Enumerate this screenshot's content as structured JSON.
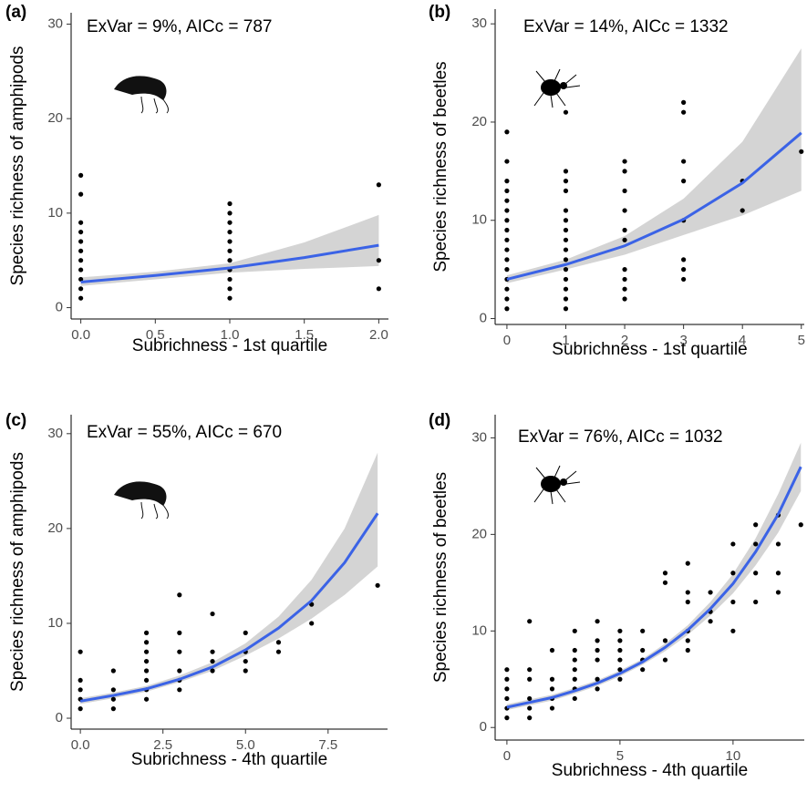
{
  "chart_data": [
    {
      "type": "scatter",
      "panel_label": "(a)",
      "annotation": "ExVar = 9%, AICc = 787",
      "x_label": "Subrichness - 1st quartile",
      "y_label": "Species richness of amphipods",
      "xlim": [
        -0.065,
        2.065
      ],
      "ylim": [
        -1.2,
        31.2
      ],
      "xticks": [
        {
          "value": 0,
          "label": "0.0"
        },
        0.5,
        {
          "value": 1,
          "label": "1.0"
        },
        1.5,
        {
          "value": 2,
          "label": "2.0"
        }
      ],
      "yticks": [
        0,
        10,
        20,
        30
      ],
      "points": {
        "color": "#000000",
        "x": [
          0,
          0,
          0,
          0,
          0,
          0,
          0,
          0,
          0,
          0,
          0,
          1,
          1,
          1,
          1,
          1,
          1,
          1,
          1,
          1,
          1,
          1,
          2,
          2,
          2
        ],
        "y": [
          1,
          2,
          3,
          4,
          5,
          6,
          7,
          8,
          9,
          12,
          14,
          1,
          2,
          3,
          4,
          5,
          6,
          7,
          8,
          9,
          10,
          11,
          2,
          5,
          13
        ]
      },
      "fit": {
        "color": "#3b63e6",
        "band_color": "#d4d4d4",
        "x": [
          0,
          0.5,
          1,
          1.5,
          2
        ],
        "values": [
          2.7,
          3.4,
          4.2,
          5.3,
          6.6
        ],
        "lower": [
          2.3,
          3.0,
          3.7,
          4.1,
          4.4
        ],
        "upper": [
          3.2,
          3.8,
          4.7,
          6.9,
          9.8
        ]
      }
    },
    {
      "type": "scatter",
      "panel_label": "(b)",
      "annotation": "ExVar = 14%, AICc = 1332",
      "x_label": "Subrichness - 1st quartile",
      "y_label": "Species richness of beetles",
      "xlim": [
        -0.2,
        5.05
      ],
      "ylim": [
        -0.6,
        31.5
      ],
      "xticks": [
        0,
        1,
        2,
        3,
        4,
        5
      ],
      "yticks": [
        0,
        10,
        20,
        30
      ],
      "points": {
        "color": "#000000",
        "x": [
          0,
          0,
          0,
          0,
          0,
          0,
          0,
          0,
          0,
          0,
          0,
          0,
          0,
          0,
          0,
          0,
          1,
          1,
          1,
          1,
          1,
          1,
          1,
          1,
          1,
          1,
          1,
          1,
          1,
          1,
          1,
          2,
          2,
          2,
          2,
          2,
          2,
          2,
          2,
          2,
          2,
          3,
          3,
          3,
          3,
          3,
          3,
          3,
          3,
          4,
          4,
          5
        ],
        "y": [
          1,
          2,
          3,
          4,
          5,
          6,
          7,
          8,
          9,
          10,
          11,
          12,
          13,
          14,
          16,
          19,
          1,
          2,
          3,
          4,
          5,
          6,
          7,
          8,
          9,
          10,
          11,
          13,
          14,
          15,
          21,
          2,
          3,
          4,
          5,
          8,
          9,
          11,
          13,
          15,
          16,
          4,
          5,
          6,
          10,
          14,
          16,
          21,
          22,
          11,
          14,
          17
        ]
      },
      "fit": {
        "color": "#3b63e6",
        "band_color": "#d4d4d4",
        "x": [
          0,
          1,
          2,
          3,
          4,
          5
        ],
        "values": [
          4,
          5.5,
          7.4,
          10.1,
          13.8,
          18.9
        ],
        "lower": [
          3.6,
          5.0,
          6.5,
          8.5,
          10.5,
          13
        ],
        "upper": [
          4.4,
          6.0,
          8.4,
          12.2,
          18,
          27.5
        ]
      }
    },
    {
      "type": "scatter",
      "panel_label": "(c)",
      "annotation": "ExVar = 55%, AICc = 670",
      "x_label": "Subrichness - 4th quartile",
      "y_label": "Species richness of amphipods",
      "xlim": [
        -0.28,
        9.3
      ],
      "ylim": [
        -1.15,
        32
      ],
      "xticks": [
        {
          "value": 0,
          "label": "0.0"
        },
        2.5,
        {
          "value": 5,
          "label": "5.0"
        },
        7.5
      ],
      "yticks": [
        0,
        10,
        20,
        30
      ],
      "points": {
        "color": "#000000",
        "x": [
          0,
          0,
          0,
          0,
          0,
          1,
          1,
          1,
          1,
          2,
          2,
          2,
          2,
          2,
          2,
          2,
          2,
          3,
          3,
          3,
          3,
          3,
          3,
          4,
          4,
          4,
          4,
          5,
          5,
          5,
          5,
          6,
          6,
          7,
          7,
          9
        ],
        "y": [
          1,
          2,
          3,
          4,
          7,
          1,
          2,
          3,
          5,
          2,
          3,
          4,
          5,
          6,
          7,
          8,
          9,
          3,
          4,
          5,
          7,
          9,
          13,
          5,
          6,
          7,
          11,
          5,
          6,
          7,
          9,
          7,
          8,
          10,
          12,
          14
        ]
      },
      "fit": {
        "color": "#3b63e6",
        "band_color": "#d4d4d4",
        "x": [
          0,
          1,
          2,
          3,
          4,
          5,
          6,
          7,
          8,
          9
        ],
        "values": [
          1.8,
          2.4,
          3.1,
          4.1,
          5.4,
          7.2,
          9.5,
          12.4,
          16.4,
          21.6
        ],
        "lower": [
          1.5,
          2.1,
          2.8,
          3.8,
          5.0,
          6.6,
          8.4,
          10.5,
          13,
          16
        ],
        "upper": [
          2.1,
          2.7,
          3.4,
          4.5,
          5.9,
          7.9,
          10.7,
          14.6,
          20,
          28
        ]
      }
    },
    {
      "type": "scatter",
      "panel_label": "(d)",
      "annotation": "ExVar = 76%, AICc = 1032",
      "x_label": "Subrichness - 4th quartile",
      "y_label": "Species richness of beetles",
      "xlim": [
        -0.52,
        13.15
      ],
      "ylim": [
        -1.3,
        32.4
      ],
      "xticks": [
        0,
        5,
        10
      ],
      "yticks": [
        0,
        10,
        20,
        30
      ],
      "points": {
        "color": "#000000",
        "x": [
          0,
          0,
          0,
          0,
          0,
          0,
          1,
          1,
          1,
          1,
          1,
          1,
          2,
          2,
          2,
          2,
          2,
          3,
          3,
          3,
          3,
          3,
          3,
          3,
          4,
          4,
          4,
          4,
          4,
          4,
          5,
          5,
          5,
          5,
          5,
          5,
          6,
          6,
          6,
          6,
          7,
          7,
          7,
          7,
          8,
          8,
          8,
          8,
          8,
          8,
          9,
          9,
          9,
          10,
          10,
          10,
          10,
          11,
          11,
          11,
          11,
          12,
          12,
          12,
          12,
          13
        ],
        "y": [
          1,
          2,
          3,
          4,
          5,
          6,
          1,
          2,
          3,
          5,
          6,
          11,
          2,
          3,
          4,
          5,
          8,
          3,
          4,
          5,
          6,
          7,
          8,
          10,
          4,
          5,
          7,
          8,
          9,
          11,
          5,
          6,
          7,
          8,
          9,
          10,
          6,
          7,
          8,
          10,
          7,
          9,
          15,
          16,
          8,
          9,
          10,
          13,
          14,
          17,
          11,
          12,
          14,
          10,
          13,
          16,
          19,
          13,
          16,
          19,
          21,
          14,
          16,
          19,
          22,
          21
        ]
      },
      "fit": {
        "color": "#3b63e6",
        "band_color": "#d4d4d4",
        "x": [
          0,
          1,
          2,
          3,
          4,
          5,
          6,
          7,
          8,
          9,
          10,
          11,
          12,
          13
        ],
        "values": [
          2.1,
          2.6,
          3.1,
          3.8,
          4.6,
          5.6,
          6.8,
          8.3,
          10.1,
          12.3,
          14.9,
          18.2,
          22.1,
          27
        ],
        "lower": [
          1.8,
          2.3,
          2.8,
          3.5,
          4.3,
          5.3,
          6.5,
          7.9,
          9.6,
          11.6,
          13.9,
          16.8,
          20.2,
          24.5
        ],
        "upper": [
          2.4,
          2.9,
          3.4,
          4.1,
          4.9,
          5.9,
          7.1,
          8.7,
          10.6,
          13,
          15.9,
          19.6,
          24.2,
          29.5
        ]
      }
    }
  ]
}
